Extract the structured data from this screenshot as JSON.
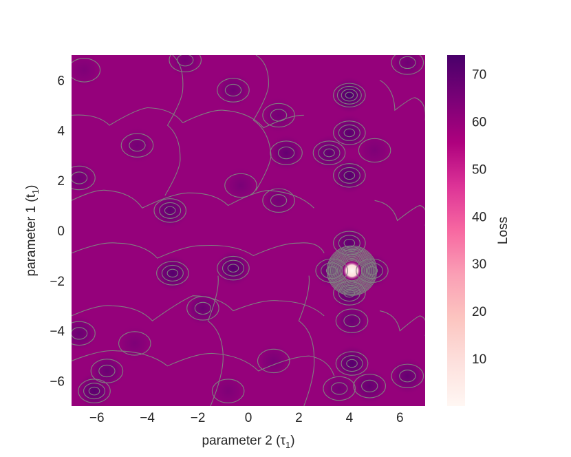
{
  "chart_data": {
    "type": "heatmap",
    "title": "",
    "xlabel": "parameter 2 (τ",
    "xlabel_sub": "1",
    "ylabel": "parameter 1 (t",
    "ylabel_sub": "1",
    "xlim": [
      -7,
      7
    ],
    "ylim": [
      -7,
      7
    ],
    "xticks": [
      -6,
      -4,
      -2,
      0,
      2,
      4,
      6
    ],
    "yticks": [
      -6,
      -4,
      -2,
      0,
      2,
      4,
      6
    ],
    "colorbar": {
      "label": "Loss",
      "range": [
        0,
        74
      ],
      "ticks": [
        10,
        20,
        30,
        40,
        50,
        60,
        70
      ],
      "colormap": [
        "#fff7f3",
        "#fde0dd",
        "#fcc5c0",
        "#fa9fb5",
        "#f768a1",
        "#dd3497",
        "#ae017e",
        "#7a0177",
        "#49006a"
      ]
    },
    "contour_color": "#808080",
    "baseline_loss": 60,
    "global_minimum": {
      "x": 4.1,
      "y": -1.6,
      "loss": 0
    },
    "features": [
      {
        "x": 4.0,
        "y": 5.4,
        "loss": 74
      },
      {
        "x": 4.0,
        "y": 3.9,
        "loss": 71
      },
      {
        "x": 4.0,
        "y": 2.2,
        "loss": 72
      },
      {
        "x": 3.2,
        "y": 3.1,
        "loss": 70
      },
      {
        "x": 4.0,
        "y": -0.5,
        "loss": 70
      },
      {
        "x": 4.0,
        "y": -2.5,
        "loss": 71
      },
      {
        "x": 3.3,
        "y": -1.6,
        "loss": 70
      },
      {
        "x": 4.9,
        "y": -1.6,
        "loss": 70
      },
      {
        "x": 4.1,
        "y": -5.3,
        "loss": 72
      },
      {
        "x": 4.1,
        "y": -3.6,
        "loss": 68
      },
      {
        "x": 4.8,
        "y": -6.2,
        "loss": 69
      },
      {
        "x": 6.3,
        "y": -5.8,
        "loss": 69
      },
      {
        "x": -3.0,
        "y": -1.7,
        "loss": 72
      },
      {
        "x": -0.6,
        "y": -1.5,
        "loss": 72
      },
      {
        "x": -3.1,
        "y": 0.8,
        "loss": 70
      },
      {
        "x": -6.1,
        "y": -6.4,
        "loss": 71
      },
      {
        "x": -5.6,
        "y": -5.6,
        "loss": 68
      },
      {
        "x": -6.7,
        "y": -4.1,
        "loss": 68
      },
      {
        "x": -1.8,
        "y": -3.1,
        "loss": 68
      },
      {
        "x": 1.5,
        "y": 3.1,
        "loss": 69
      },
      {
        "x": 1.2,
        "y": 4.6,
        "loss": 66
      },
      {
        "x": -0.6,
        "y": 5.6,
        "loss": 67
      },
      {
        "x": 6.3,
        "y": 6.7,
        "loss": 67
      },
      {
        "x": -4.4,
        "y": 3.4,
        "loss": 66
      },
      {
        "x": -6.7,
        "y": 2.1,
        "loss": 67
      },
      {
        "x": 1.2,
        "y": 1.2,
        "loss": 66
      },
      {
        "x": -0.3,
        "y": 1.8,
        "loss": 65
      },
      {
        "x": 3.6,
        "y": -6.3,
        "loss": 66
      },
      {
        "x": 1.0,
        "y": -5.2,
        "loss": 65
      },
      {
        "x": -4.5,
        "y": -4.5,
        "loss": 64
      },
      {
        "x": 5.0,
        "y": 3.2,
        "loss": 64
      },
      {
        "x": -6.5,
        "y": 6.4,
        "loss": 64
      },
      {
        "x": -2.5,
        "y": 6.8,
        "loss": 66
      },
      {
        "x": -0.8,
        "y": -6.4,
        "loss": 64
      }
    ]
  }
}
